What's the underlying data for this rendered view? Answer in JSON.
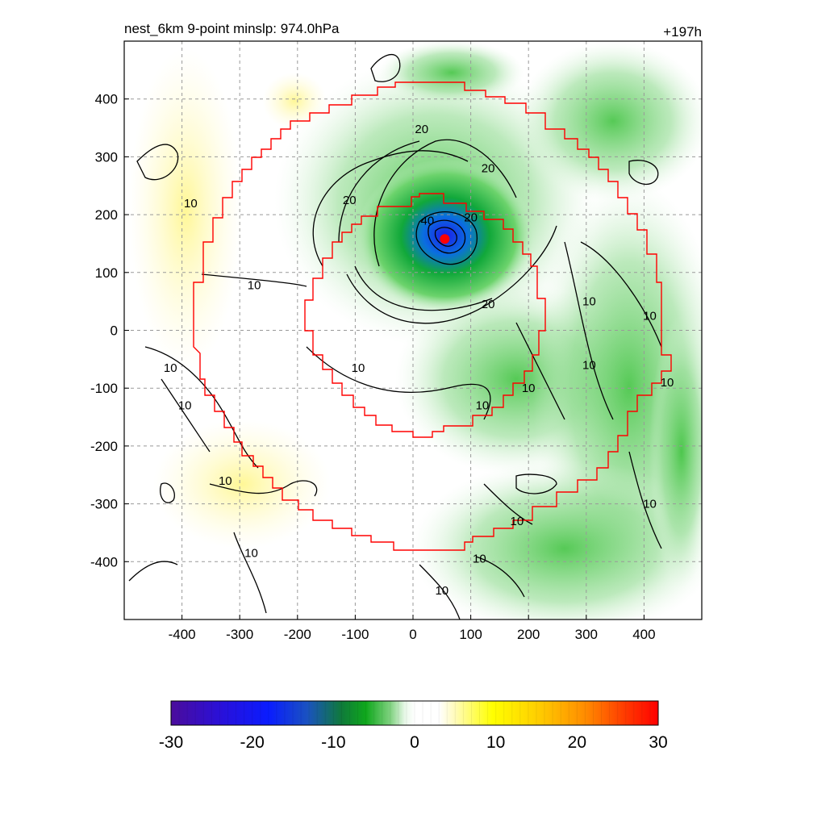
{
  "title": "nest_6km  9-point minslp: 974.0hPa",
  "forecast_hour": "+197h",
  "colors": {
    "domain_outline": "#ff0000",
    "storm_center": "#ff0000",
    "contour_line": "#000000",
    "grid_line": "#999999"
  },
  "chart_data": {
    "type": "heatmap",
    "x_ticks": [
      -400,
      -300,
      -200,
      -100,
      0,
      100,
      200,
      300,
      400
    ],
    "y_ticks": [
      400,
      300,
      200,
      100,
      0,
      -100,
      -200,
      -300,
      -400
    ],
    "xlim": [
      -500,
      500
    ],
    "ylim": [
      -500,
      500
    ],
    "grid": true,
    "storm_center": {
      "x": 55,
      "y": 158
    },
    "contour_labels": [
      {
        "text": "10",
        "x": -385,
        "y": 220
      },
      {
        "text": "10",
        "x": -275,
        "y": 78
      },
      {
        "text": "20",
        "x": 15,
        "y": 348
      },
      {
        "text": "20",
        "x": 130,
        "y": 280
      },
      {
        "text": "20",
        "x": -110,
        "y": 225
      },
      {
        "text": "40",
        "x": 25,
        "y": 190
      },
      {
        "text": "20",
        "x": 100,
        "y": 195
      },
      {
        "text": "20",
        "x": 130,
        "y": 45
      },
      {
        "text": "10",
        "x": 305,
        "y": 50
      },
      {
        "text": "10",
        "x": 410,
        "y": 25
      },
      {
        "text": "10",
        "x": -420,
        "y": -65
      },
      {
        "text": "10",
        "x": -395,
        "y": -130
      },
      {
        "text": "10",
        "x": -95,
        "y": -65
      },
      {
        "text": "10",
        "x": 305,
        "y": -60
      },
      {
        "text": "10",
        "x": 200,
        "y": -100
      },
      {
        "text": "10",
        "x": 120,
        "y": -130
      },
      {
        "text": "10",
        "x": 440,
        "y": -90
      },
      {
        "text": "10",
        "x": -325,
        "y": -260
      },
      {
        "text": "10",
        "x": 180,
        "y": -330
      },
      {
        "text": "10",
        "x": 410,
        "y": -300
      },
      {
        "text": "10",
        "x": -280,
        "y": -385
      },
      {
        "text": "10",
        "x": 115,
        "y": -395
      },
      {
        "text": "10",
        "x": 50,
        "y": -450
      }
    ],
    "colorbar": {
      "min": -30,
      "max": 30,
      "tick_values": [
        -30,
        -20,
        -10,
        0,
        10,
        20,
        30
      ],
      "tick_labels": [
        "-30",
        "-20",
        "-10",
        "0",
        "10",
        "20",
        "30"
      ]
    }
  }
}
